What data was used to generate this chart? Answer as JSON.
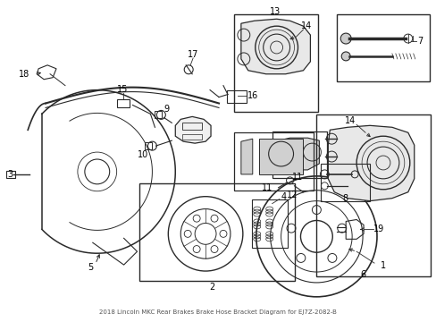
{
  "title": "2018 Lincoln MKC Rear Brakes Brake Hose Bracket Diagram for EJ7Z-2082-B",
  "bg_color": "#ffffff",
  "lc": "#2a2a2a",
  "figsize": [
    4.89,
    3.6
  ],
  "dpi": 100
}
